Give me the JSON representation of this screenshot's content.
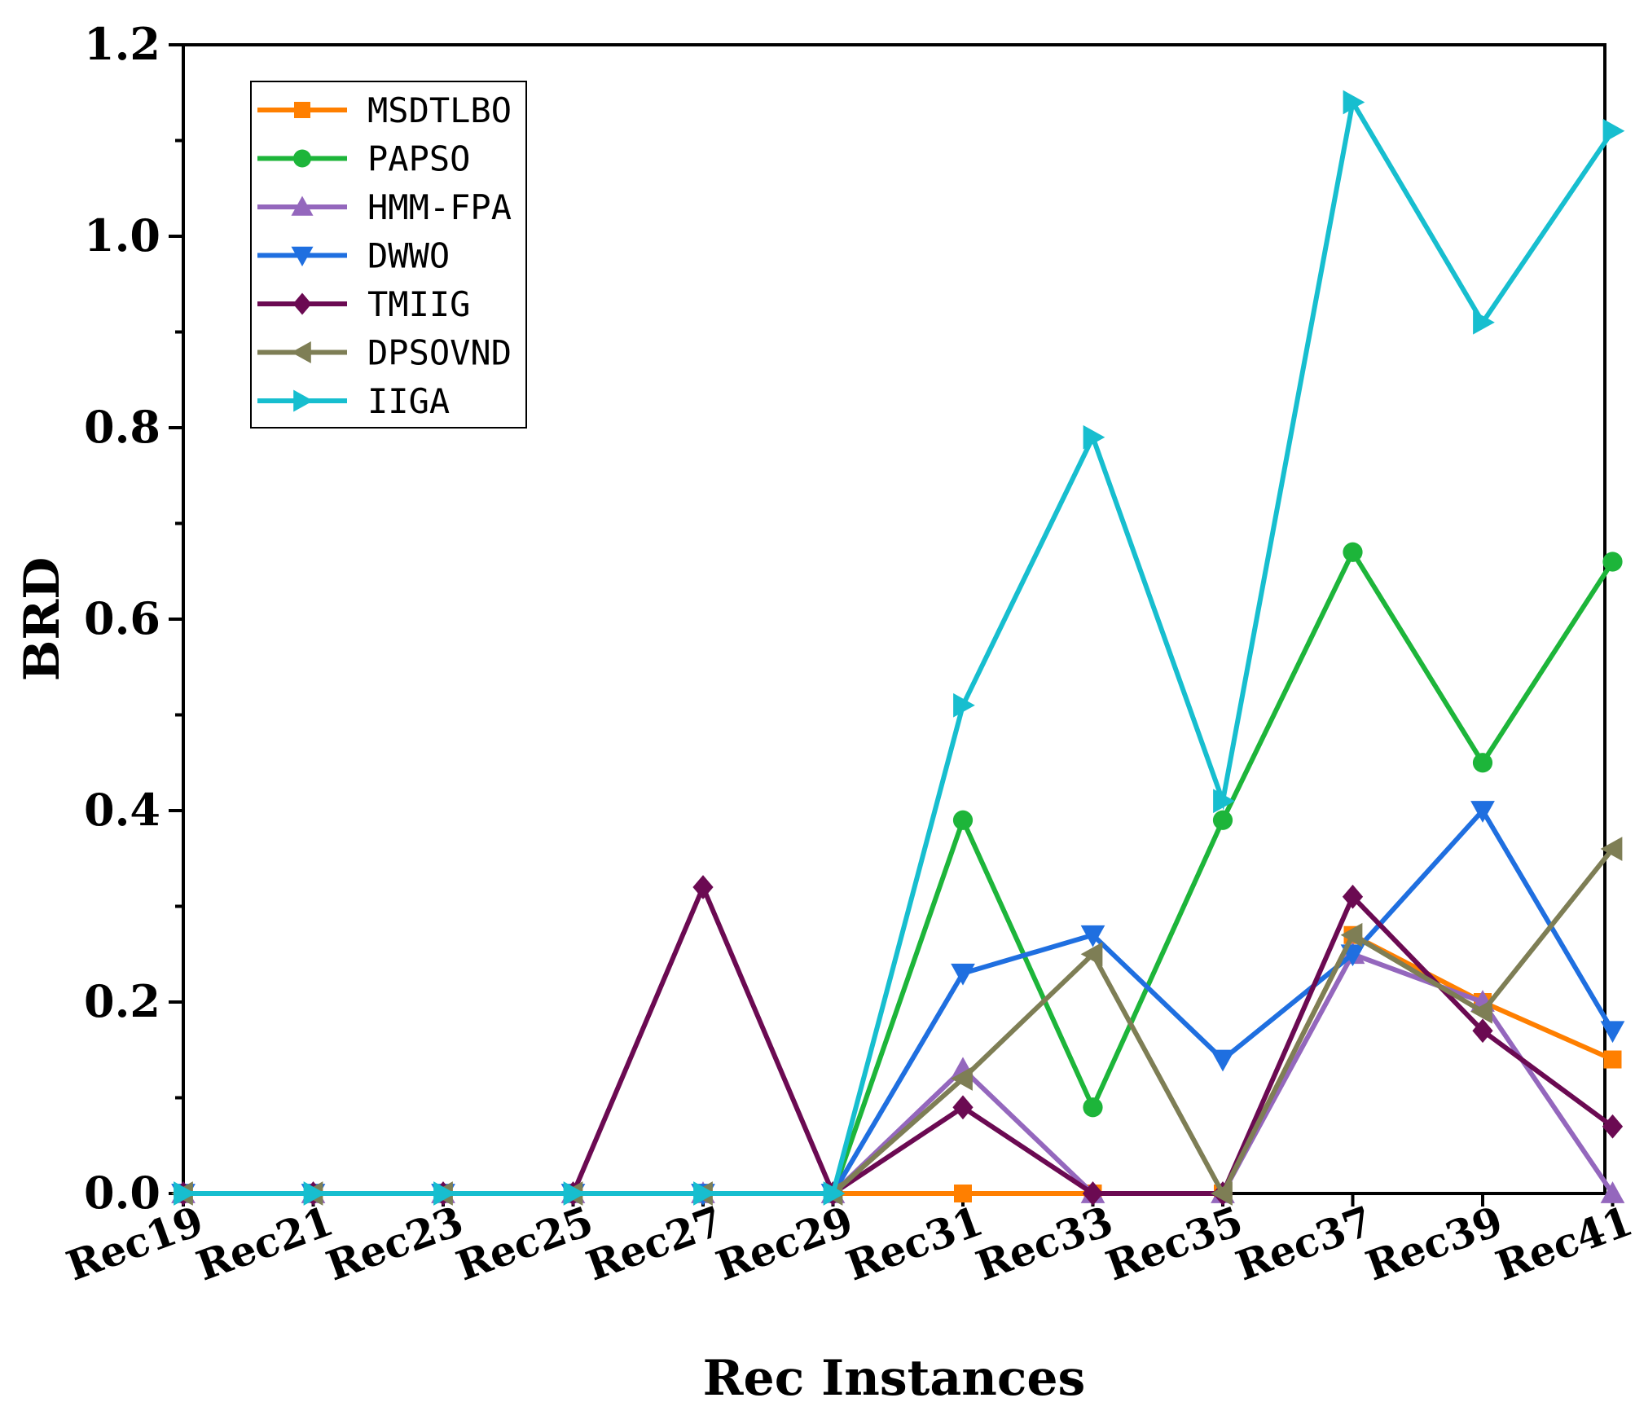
{
  "chart_data": {
    "type": "line",
    "title": "",
    "xlabel": "Rec Instances",
    "ylabel": "BRD",
    "ylim": [
      0,
      1.2
    ],
    "yticks": [
      0.0,
      0.2,
      0.4,
      0.6,
      0.8,
      1.0,
      1.2
    ],
    "ytick_labels": [
      "0.0",
      "0.2",
      "0.4",
      "0.6",
      "0.8",
      "1.0",
      "1.2"
    ],
    "categories": [
      "Rec19",
      "Rec21",
      "Rec23",
      "Rec25",
      "Rec27",
      "Rec29",
      "Rec31",
      "Rec33",
      "Rec35",
      "Rec37",
      "Rec39",
      "Rec41"
    ],
    "legend_position": "top-left",
    "series": [
      {
        "name": "MSDTLBO",
        "color": "#FF7F00",
        "marker": "square",
        "values": [
          0,
          0,
          0,
          0,
          0,
          0,
          0,
          0,
          0,
          0.27,
          0.2,
          0.14
        ]
      },
      {
        "name": "PAPSO",
        "color": "#1DB53A",
        "marker": "circle",
        "values": [
          0,
          0,
          0,
          0,
          0,
          0,
          0.39,
          0.09,
          0.39,
          0.67,
          0.45,
          0.66
        ]
      },
      {
        "name": "HMM-FPA",
        "color": "#9467BD",
        "marker": "triangle-up",
        "values": [
          0,
          0,
          0,
          0,
          0,
          0,
          0.13,
          0,
          0,
          0.25,
          0.2,
          0
        ]
      },
      {
        "name": "DWWO",
        "color": "#1F6FE0",
        "marker": "triangle-down",
        "values": [
          0,
          0,
          0,
          0,
          0,
          0,
          0.23,
          0.27,
          0.14,
          0.25,
          0.4,
          0.17
        ]
      },
      {
        "name": "TMIIG",
        "color": "#6B0A52",
        "marker": "diamond",
        "values": [
          0,
          0,
          0,
          0,
          0.32,
          0,
          0.09,
          0,
          0,
          0.31,
          0.17,
          0.07
        ]
      },
      {
        "name": "DPSOVND",
        "color": "#7E7E55",
        "marker": "triangle-left",
        "values": [
          0,
          0,
          0,
          0,
          0,
          0,
          0.12,
          0.25,
          0,
          0.27,
          0.19,
          0.36
        ]
      },
      {
        "name": "IIGA",
        "color": "#17BECF",
        "marker": "triangle-right",
        "values": [
          0,
          0,
          0,
          0,
          0,
          0,
          0.51,
          0.79,
          0.41,
          1.14,
          0.91,
          1.11
        ]
      }
    ]
  }
}
